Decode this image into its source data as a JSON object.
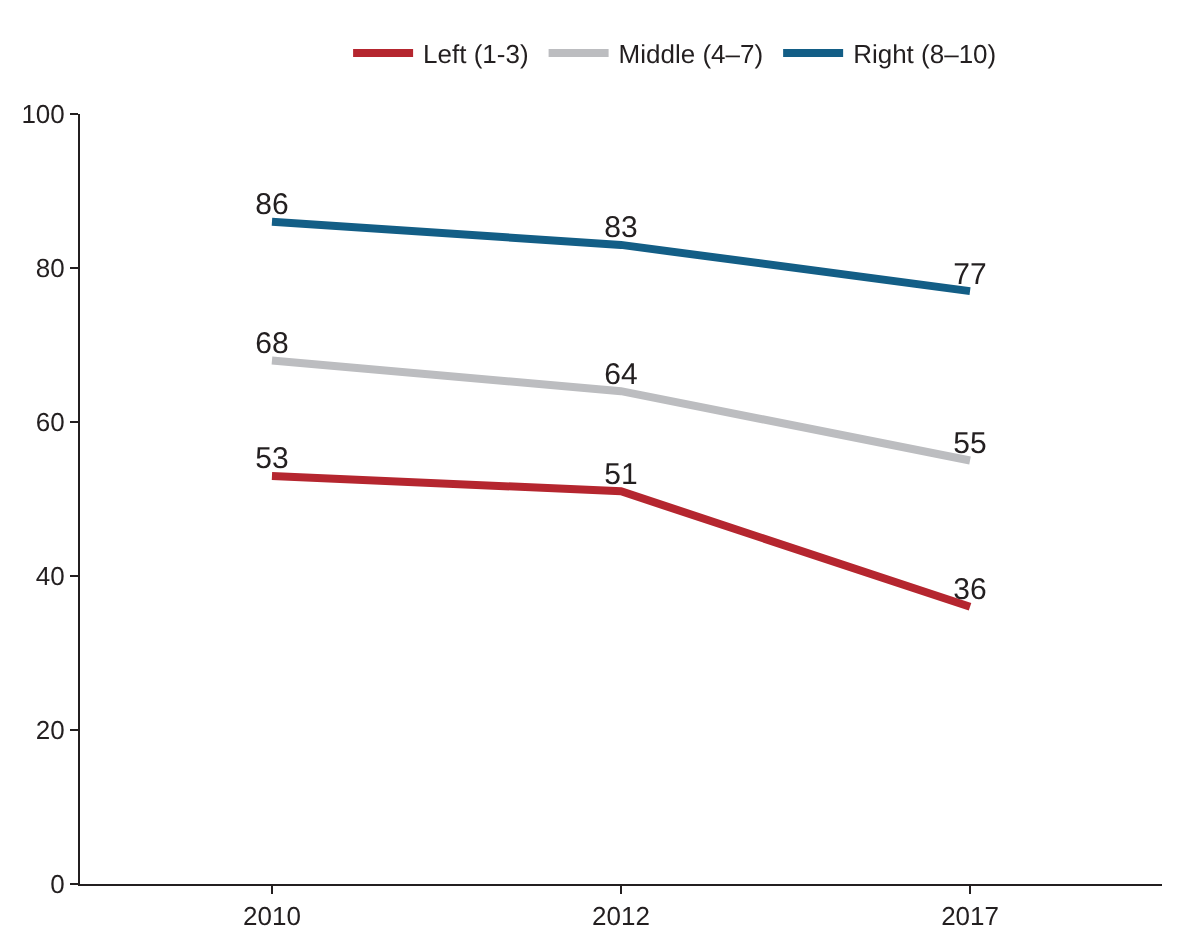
{
  "chart_data": {
    "type": "line",
    "categories": [
      "2010",
      "2012",
      "2017"
    ],
    "series": [
      {
        "name": "Left (1-3)",
        "color": "#b5262f",
        "values": [
          53,
          51,
          36
        ]
      },
      {
        "name": "Middle (4–7)",
        "color": "#bcbdc0",
        "values": [
          68,
          64,
          55
        ]
      },
      {
        "name": "Right (8–10)",
        "color": "#135e86",
        "values": [
          86,
          83,
          77
        ]
      }
    ],
    "ylim": [
      0,
      100
    ],
    "yticks": [
      0,
      20,
      40,
      60,
      80,
      100
    ],
    "data_labels": true,
    "legend": "top",
    "grid": false,
    "marker": "none",
    "line_style": "solid"
  }
}
